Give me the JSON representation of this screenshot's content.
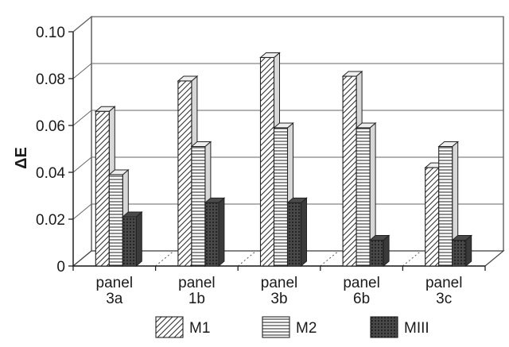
{
  "chart_data": {
    "type": "bar",
    "title": "",
    "xlabel": "",
    "ylabel": "ΔE",
    "ylim": [
      0,
      0.1
    ],
    "yticks": [
      "0",
      "0.02",
      "0.04",
      "0.06",
      "0.08",
      "0.10"
    ],
    "grid": true,
    "legend_position": "bottom",
    "categories": [
      [
        "panel",
        "3a"
      ],
      [
        "panel",
        "1b"
      ],
      [
        "panel",
        "3b"
      ],
      [
        "panel",
        "6b"
      ],
      [
        "panel",
        "3c"
      ]
    ],
    "series": [
      {
        "name": "M1",
        "values": [
          0.066,
          0.079,
          0.089,
          0.081,
          0.042
        ],
        "pattern": "diagonal-hatch"
      },
      {
        "name": "M2",
        "values": [
          0.039,
          0.051,
          0.059,
          0.059,
          0.051
        ],
        "pattern": "horizontal-lines"
      },
      {
        "name": "MIII",
        "values": [
          0.021,
          0.027,
          0.027,
          0.011,
          0.011
        ],
        "pattern": "dark-crosshatch"
      }
    ]
  }
}
